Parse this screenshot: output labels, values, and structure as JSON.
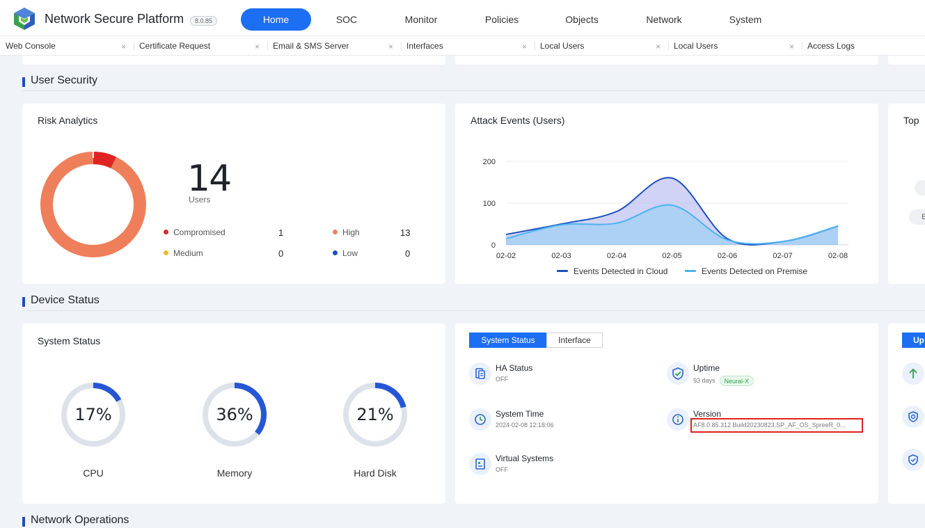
{
  "header": {
    "app_title": "Network Secure Platform",
    "version": "8.0.85",
    "nav": [
      "Home",
      "SOC",
      "Monitor",
      "Policies",
      "Objects",
      "Network",
      "System"
    ],
    "active_nav": "Home"
  },
  "tabs": [
    {
      "label": "Web Console",
      "close": "×"
    },
    {
      "label": "Certificate Request",
      "close": "×"
    },
    {
      "label": "Email & SMS Server",
      "close": "×"
    },
    {
      "label": "Interfaces",
      "close": "×"
    },
    {
      "label": "Local Users",
      "close": "×"
    },
    {
      "label": "Local Users",
      "close": "×"
    },
    {
      "label": "Access Logs"
    }
  ],
  "sections": {
    "user_security": "User Security",
    "device_status": "Device Status",
    "network_operations": "Network Operations"
  },
  "risk": {
    "title": "Risk Analytics",
    "total": "14",
    "unit": "Users",
    "items": [
      {
        "label": "Compromised",
        "value": "1",
        "color": "#e02424"
      },
      {
        "label": "High",
        "value": "13",
        "color": "#f08060"
      },
      {
        "label": "Medium",
        "value": "0",
        "color": "#f5b82e"
      },
      {
        "label": "Low",
        "value": "0",
        "color": "#1c4fbf"
      }
    ]
  },
  "attack": {
    "title": "Attack Events (Users)",
    "legend_cloud": "Events Detected in Cloud",
    "legend_premise": "Events Detected on Premise"
  },
  "chart_data": {
    "type": "area",
    "title": "Attack Events (Users)",
    "x": [
      "02-02",
      "02-03",
      "02-04",
      "02-05",
      "02-06",
      "02-07",
      "02-08"
    ],
    "yticks": [
      0,
      100,
      200
    ],
    "ylim": [
      0,
      200
    ],
    "series": [
      {
        "name": "Events Detected in Cloud",
        "color": "#1c4fbf",
        "values": [
          25,
          50,
          80,
          160,
          15,
          8,
          45
        ]
      },
      {
        "name": "Events Detected on Premise",
        "color": "#4cb3f0",
        "values": [
          15,
          48,
          52,
          95,
          12,
          8,
          45
        ]
      }
    ],
    "legend": "bottom"
  },
  "top_card": {
    "title_fragment": "Top",
    "chip_fragment": "E"
  },
  "system_status": {
    "title": "System Status",
    "gauges": [
      {
        "label": "CPU",
        "value": "17%",
        "fraction": 0.17
      },
      {
        "label": "Memory",
        "value": "36%",
        "fraction": 0.36
      },
      {
        "label": "Hard Disk",
        "value": "21%",
        "fraction": 0.21
      }
    ]
  },
  "status_panel": {
    "tabs": [
      "System Status",
      "Interface"
    ],
    "ha": {
      "title": "HA Status",
      "value": "OFF"
    },
    "uptime": {
      "title": "Uptime",
      "value": "93 days",
      "badge": "Neural-X"
    },
    "system_time": {
      "title": "System Time",
      "value": "2024-02-08 12:18:06"
    },
    "version": {
      "title": "Version",
      "value": "AF8.0.85.312 Build20230823,SP_AF_OS_SpreeR_0..."
    },
    "virtual": {
      "title": "Virtual Systems",
      "value": "OFF"
    }
  },
  "right_panel": {
    "button_fragment": "Up"
  }
}
